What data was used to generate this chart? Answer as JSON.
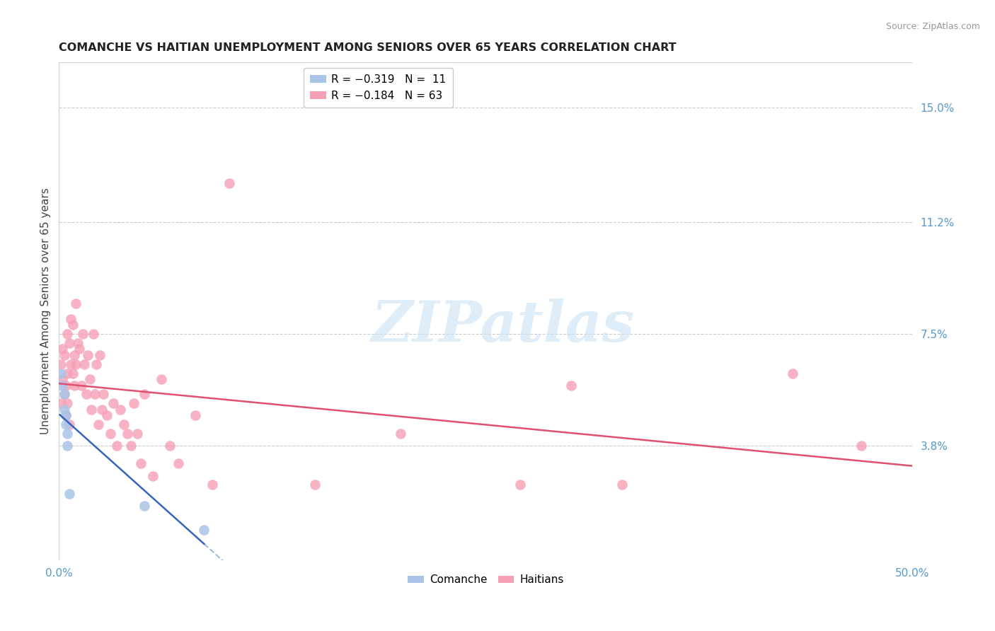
{
  "title": "COMANCHE VS HAITIAN UNEMPLOYMENT AMONG SENIORS OVER 65 YEARS CORRELATION CHART",
  "source": "Source: ZipAtlas.com",
  "ylabel": "Unemployment Among Seniors over 65 years",
  "xlim": [
    0.0,
    0.5
  ],
  "ylim": [
    0.0,
    0.165
  ],
  "ytick_right_labels": [
    "15.0%",
    "11.2%",
    "7.5%",
    "3.8%"
  ],
  "ytick_right_values": [
    0.15,
    0.112,
    0.075,
    0.038
  ],
  "comanche_color": "#aac4e8",
  "haitian_color": "#f5a0b5",
  "comanche_line_color": "#3366bb",
  "haitian_line_color": "#e05070",
  "comanche_x": [
    0.001,
    0.002,
    0.003,
    0.003,
    0.004,
    0.004,
    0.005,
    0.005,
    0.006,
    0.05,
    0.085
  ],
  "comanche_y": [
    0.062,
    0.058,
    0.055,
    0.05,
    0.048,
    0.045,
    0.042,
    0.038,
    0.022,
    0.018,
    0.01
  ],
  "haitian_x": [
    0.001,
    0.001,
    0.002,
    0.002,
    0.003,
    0.003,
    0.004,
    0.004,
    0.005,
    0.005,
    0.005,
    0.006,
    0.006,
    0.007,
    0.007,
    0.008,
    0.008,
    0.009,
    0.009,
    0.01,
    0.01,
    0.011,
    0.012,
    0.013,
    0.014,
    0.015,
    0.016,
    0.017,
    0.018,
    0.019,
    0.02,
    0.021,
    0.022,
    0.023,
    0.024,
    0.025,
    0.026,
    0.028,
    0.03,
    0.032,
    0.034,
    0.036,
    0.038,
    0.04,
    0.042,
    0.044,
    0.046,
    0.048,
    0.05,
    0.055,
    0.06,
    0.065,
    0.07,
    0.08,
    0.09,
    0.1,
    0.15,
    0.2,
    0.27,
    0.3,
    0.33,
    0.43,
    0.47
  ],
  "haitian_y": [
    0.052,
    0.065,
    0.06,
    0.07,
    0.055,
    0.068,
    0.058,
    0.048,
    0.062,
    0.052,
    0.075,
    0.045,
    0.072,
    0.08,
    0.065,
    0.078,
    0.062,
    0.058,
    0.068,
    0.085,
    0.065,
    0.072,
    0.07,
    0.058,
    0.075,
    0.065,
    0.055,
    0.068,
    0.06,
    0.05,
    0.075,
    0.055,
    0.065,
    0.045,
    0.068,
    0.05,
    0.055,
    0.048,
    0.042,
    0.052,
    0.038,
    0.05,
    0.045,
    0.042,
    0.038,
    0.052,
    0.042,
    0.032,
    0.055,
    0.028,
    0.06,
    0.038,
    0.032,
    0.048,
    0.025,
    0.125,
    0.025,
    0.042,
    0.025,
    0.058,
    0.025,
    0.062,
    0.038
  ],
  "watermark_text": "ZIPatlas",
  "background_color": "#ffffff",
  "grid_color": "#cccccc"
}
